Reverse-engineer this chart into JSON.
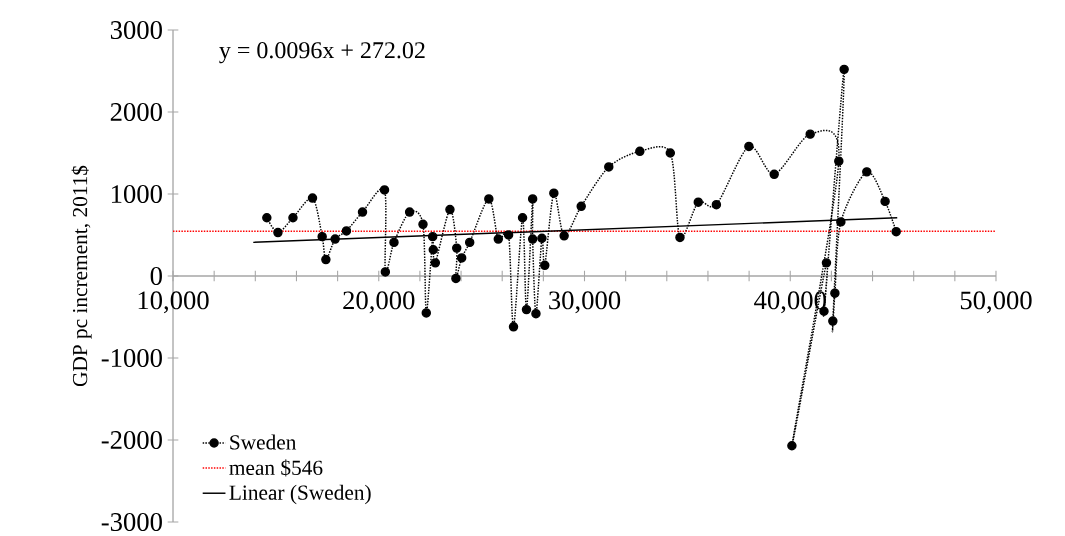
{
  "chart_data": {
    "type": "line",
    "ylabel": "GDP pc increment, 2011$",
    "annotations": [
      "y = 0.0096x + 272.02"
    ],
    "xlim": [
      10000,
      50000
    ],
    "ylim": [
      -3000,
      3000
    ],
    "xticks": [
      {
        "value": 10000,
        "label": "10,000"
      },
      {
        "value": 20000,
        "label": "20,000"
      },
      {
        "value": 30000,
        "label": "30,000"
      },
      {
        "value": 40000,
        "label": "40,000"
      },
      {
        "value": 50000,
        "label": "50,000"
      }
    ],
    "yticks": [
      -3000,
      -2000,
      -1000,
      0,
      1000,
      2000,
      3000
    ],
    "grid": false,
    "legend": "bottom left",
    "series": [
      {
        "name": "Sweden",
        "type": "line",
        "color": "#000000",
        "marker": "circle",
        "line_style": "dotted",
        "x": [
          14560,
          15100,
          15830,
          16780,
          17250,
          17430,
          17880,
          18430,
          19210,
          20280,
          20320,
          20740,
          21500,
          22150,
          22310,
          22620,
          22650,
          22750,
          23460,
          23790,
          23750,
          24030,
          24420,
          25350,
          25810,
          26310,
          26550,
          26990,
          27180,
          27480,
          27480,
          27640,
          27930,
          28070,
          28510,
          29010,
          29840,
          31180,
          32690,
          34170,
          34640,
          35530,
          36410,
          37990,
          39220,
          40970,
          42360,
          40080,
          41760,
          41640,
          42620,
          42070,
          42170,
          42460,
          43720,
          44610,
          45150
        ],
        "values": [
          710,
          530,
          710,
          950,
          480,
          200,
          450,
          550,
          780,
          1050,
          50,
          410,
          780,
          630,
          -450,
          480,
          320,
          160,
          810,
          340,
          -30,
          220,
          410,
          940,
          450,
          500,
          -620,
          710,
          -410,
          940,
          450,
          -460,
          460,
          130,
          1010,
          490,
          850,
          1330,
          1520,
          1500,
          470,
          900,
          870,
          1580,
          1240,
          1730,
          1400,
          -2070,
          160,
          -430,
          2520,
          -550,
          -210,
          660,
          1270,
          910,
          540
        ]
      },
      {
        "name": "Linear (Sweden)",
        "type": "line",
        "color": "#000000",
        "marker": "none",
        "line_style": "solid",
        "x": [
          13900,
          45200
        ],
        "values": [
          410,
          710
        ]
      }
    ],
    "ref_lines": [
      {
        "axis": "y",
        "value": 546,
        "label": "mean $546",
        "color": "#ff0000",
        "line_style": "dotted"
      }
    ]
  }
}
